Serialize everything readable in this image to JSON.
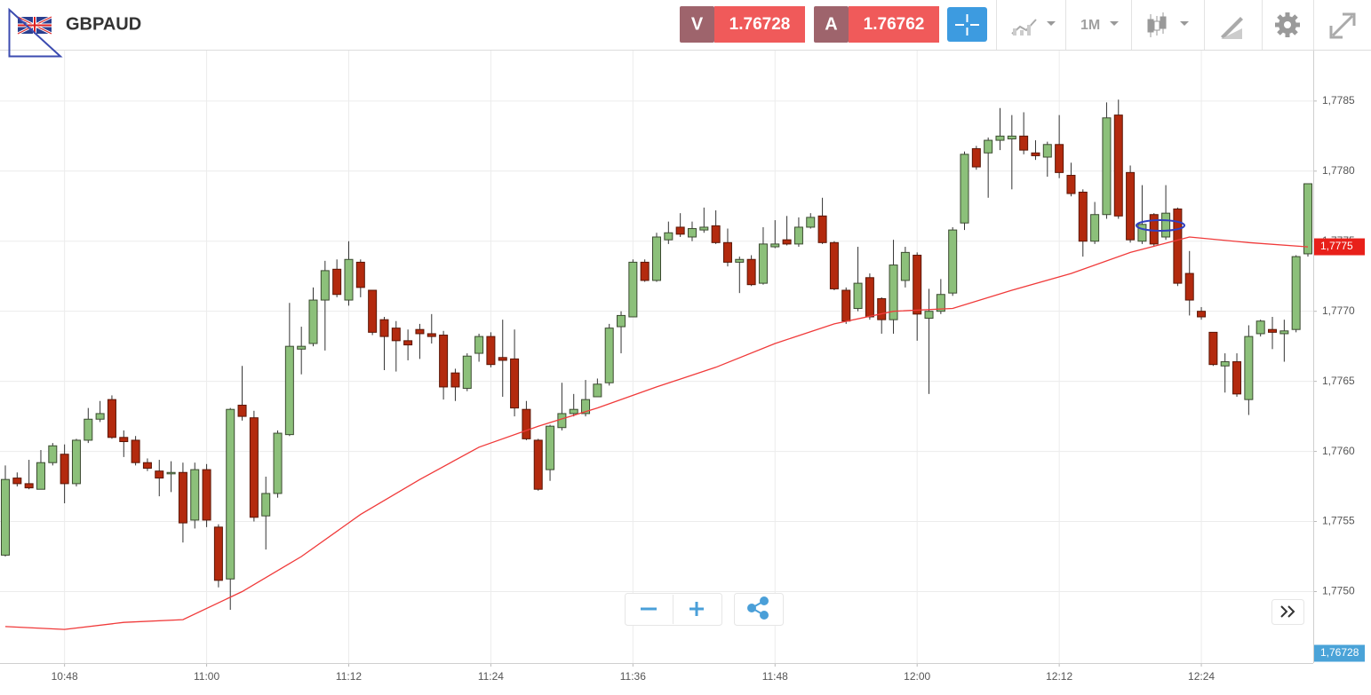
{
  "header": {
    "symbol": "GBPAUD",
    "bid": {
      "label": "V",
      "price": "1.76728"
    },
    "ask": {
      "label": "A",
      "price": "1.76762"
    },
    "timeframe": "1M"
  },
  "chart_data": {
    "type": "candlestick",
    "x": [
      "10:43",
      "10:44",
      "10:45",
      "10:46",
      "10:47",
      "10:48",
      "10:49",
      "10:50",
      "10:51",
      "10:52",
      "10:53",
      "10:54",
      "10:55",
      "10:56",
      "10:57",
      "10:58",
      "10:59",
      "11:00",
      "11:01",
      "11:02",
      "11:03",
      "11:04",
      "11:05",
      "11:06",
      "11:07",
      "11:08",
      "11:09",
      "11:10",
      "11:11",
      "11:12",
      "11:13",
      "11:14",
      "11:15",
      "11:16",
      "11:17",
      "11:18",
      "11:19",
      "11:20",
      "11:21",
      "11:22",
      "11:23",
      "11:24",
      "11:25",
      "11:26",
      "11:27",
      "11:28",
      "11:29",
      "11:30",
      "11:31",
      "11:32",
      "11:33",
      "11:34",
      "11:35",
      "11:36",
      "11:37",
      "11:38",
      "11:39",
      "11:40",
      "11:41",
      "11:42",
      "11:43",
      "11:44",
      "11:45",
      "11:46",
      "11:47",
      "11:48",
      "11:49",
      "11:50",
      "11:51",
      "11:52",
      "11:53",
      "11:54",
      "11:55",
      "11:56",
      "11:57",
      "11:58",
      "11:59",
      "12:00",
      "12:01",
      "12:02",
      "12:03",
      "12:04",
      "12:05",
      "12:06",
      "12:07",
      "12:08",
      "12:09",
      "12:10",
      "12:11",
      "12:12",
      "12:13",
      "12:14",
      "12:15",
      "12:16",
      "12:17",
      "12:18",
      "12:19",
      "12:20",
      "12:21",
      "12:22",
      "12:23",
      "12:24",
      "12:25",
      "12:26",
      "12:27",
      "12:28",
      "12:29",
      "12:30",
      "12:31",
      "12:32",
      "12:33"
    ],
    "open": [
      1.77526,
      1.77581,
      1.77577,
      1.77573,
      1.77592,
      1.77598,
      1.77577,
      1.77608,
      1.77623,
      1.77637,
      1.7761,
      1.77608,
      1.77592,
      1.77586,
      1.77584,
      1.77585,
      1.77551,
      1.77587,
      1.77546,
      1.77509,
      1.77633,
      1.77624,
      1.77554,
      1.7757,
      1.77612,
      1.77673,
      1.77677,
      1.77708,
      1.7773,
      1.77708,
      1.77735,
      1.77715,
      1.77694,
      1.77688,
      1.77679,
      1.77687,
      1.77684,
      1.77683,
      1.77656,
      1.77645,
      1.7767,
      1.77682,
      1.77667,
      1.77666,
      1.7763,
      1.77608,
      1.77587,
      1.77617,
      1.77627,
      1.77627,
      1.77639,
      1.77649,
      1.77689,
      1.77696,
      1.77735,
      1.77722,
      1.77751,
      1.7776,
      1.77753,
      1.77758,
      1.77761,
      1.77749,
      1.77735,
      1.77737,
      1.7772,
      1.77746,
      1.77751,
      1.77748,
      1.7776,
      1.77768,
      1.77749,
      1.77715,
      1.77702,
      1.77724,
      1.77709,
      1.77694,
      1.77722,
      1.7774,
      1.77695,
      1.777,
      1.77713,
      1.77763,
      1.77816,
      1.77813,
      1.77822,
      1.77823,
      1.77825,
      1.77813,
      1.7781,
      1.77819,
      1.77797,
      1.77785,
      1.7775,
      1.77769,
      1.7784,
      1.77799,
      1.7775,
      1.77769,
      1.77753,
      1.77773,
      1.77727,
      1.777,
      1.77685,
      1.77661,
      1.77664,
      1.77637,
      1.77684,
      1.77687,
      1.77684,
      1.77687,
      1.77741
    ],
    "high": [
      1.7759,
      1.77585,
      1.77594,
      1.77601,
      1.77606,
      1.77605,
      1.77609,
      1.77631,
      1.77636,
      1.7764,
      1.77615,
      1.77611,
      1.77595,
      1.77594,
      1.77593,
      1.77592,
      1.77592,
      1.77591,
      1.77548,
      1.77631,
      1.77661,
      1.77629,
      1.77582,
      1.77615,
      1.77706,
      1.77689,
      1.77717,
      1.77736,
      1.77737,
      1.7775,
      1.77737,
      1.77715,
      1.77696,
      1.77693,
      1.77687,
      1.77691,
      1.77698,
      1.77686,
      1.77659,
      1.7767,
      1.77684,
      1.77685,
      1.77694,
      1.77687,
      1.77636,
      1.77609,
      1.77619,
      1.77649,
      1.77641,
      1.77651,
      1.77652,
      1.77691,
      1.777,
      1.77737,
      1.77737,
      1.77756,
      1.77764,
      1.7777,
      1.77764,
      1.77774,
      1.77772,
      1.77759,
      1.77739,
      1.7774,
      1.7776,
      1.77765,
      1.77768,
      1.77767,
      1.7777,
      1.77781,
      1.7775,
      1.77717,
      1.77746,
      1.77727,
      1.7771,
      1.77751,
      1.77746,
      1.77742,
      1.77716,
      1.77723,
      1.7776,
      1.77814,
      1.77818,
      1.77824,
      1.77845,
      1.7784,
      1.77842,
      1.77822,
      1.77821,
      1.7784,
      1.77806,
      1.77787,
      1.77778,
      1.77849,
      1.77851,
      1.77804,
      1.7779,
      1.7777,
      1.7779,
      1.77774,
      1.77743,
      1.77703,
      1.77685,
      1.7767,
      1.7767,
      1.7769,
      1.77694,
      1.77696,
      1.77694,
      1.7774,
      1.77791
    ],
    "low": [
      1.77525,
      1.77575,
      1.77573,
      1.77573,
      1.7759,
      1.77563,
      1.77575,
      1.77606,
      1.77621,
      1.77609,
      1.77596,
      1.7759,
      1.77586,
      1.77568,
      1.77571,
      1.77535,
      1.77545,
      1.77546,
      1.77503,
      1.77487,
      1.77622,
      1.7755,
      1.7753,
      1.77567,
      1.77611,
      1.77655,
      1.77675,
      1.77672,
      1.7771,
      1.77704,
      1.7771,
      1.77683,
      1.77658,
      1.77657,
      1.77665,
      1.77666,
      1.77677,
      1.77637,
      1.77636,
      1.77643,
      1.77664,
      1.7766,
      1.77639,
      1.77625,
      1.77608,
      1.77572,
      1.77579,
      1.77615,
      1.77625,
      1.77625,
      1.77639,
      1.77647,
      1.7767,
      1.77696,
      1.77721,
      1.77721,
      1.77748,
      1.77753,
      1.7775,
      1.77756,
      1.77748,
      1.77732,
      1.77713,
      1.77718,
      1.77719,
      1.77745,
      1.77747,
      1.77746,
      1.77759,
      1.77748,
      1.77715,
      1.77691,
      1.777,
      1.77694,
      1.77684,
      1.77684,
      1.77717,
      1.77679,
      1.77641,
      1.77698,
      1.77711,
      1.77758,
      1.77801,
      1.77781,
      1.77815,
      1.77787,
      1.77812,
      1.77808,
      1.77796,
      1.77795,
      1.77782,
      1.77739,
      1.77748,
      1.77766,
      1.77766,
      1.77749,
      1.77748,
      1.77746,
      1.77751,
      1.77718,
      1.77697,
      1.77694,
      1.77661,
      1.77642,
      1.77639,
      1.77626,
      1.77682,
      1.77673,
      1.77664,
      1.77685,
      1.77739
    ],
    "close": [
      1.7758,
      1.77577,
      1.77574,
      1.77592,
      1.77604,
      1.77577,
      1.77608,
      1.77623,
      1.77627,
      1.7761,
      1.77607,
      1.77592,
      1.77588,
      1.77581,
      1.77585,
      1.77549,
      1.77587,
      1.77551,
      1.77508,
      1.7763,
      1.77625,
      1.77553,
      1.7757,
      1.77613,
      1.77675,
      1.77675,
      1.77708,
      1.77729,
      1.77712,
      1.77737,
      1.77717,
      1.77685,
      1.77682,
      1.77679,
      1.77676,
      1.77684,
      1.77682,
      1.77646,
      1.77646,
      1.77668,
      1.77682,
      1.77662,
      1.77665,
      1.77631,
      1.77609,
      1.77573,
      1.77618,
      1.77627,
      1.7763,
      1.77637,
      1.77648,
      1.77688,
      1.77697,
      1.77735,
      1.77722,
      1.77753,
      1.77756,
      1.77755,
      1.77759,
      1.7776,
      1.77749,
      1.77735,
      1.77737,
      1.77719,
      1.77748,
      1.77748,
      1.77748,
      1.7776,
      1.77767,
      1.77749,
      1.77716,
      1.77693,
      1.7772,
      1.77696,
      1.77694,
      1.77733,
      1.77742,
      1.77698,
      1.777,
      1.77712,
      1.77758,
      1.77812,
      1.77803,
      1.77822,
      1.77825,
      1.77825,
      1.77815,
      1.77811,
      1.77819,
      1.77799,
      1.77784,
      1.7775,
      1.77769,
      1.77838,
      1.77768,
      1.77751,
      1.77762,
      1.77748,
      1.7777,
      1.7772,
      1.77708,
      1.77696,
      1.77662,
      1.77664,
      1.77641,
      1.77682,
      1.77693,
      1.77685,
      1.77686,
      1.77739,
      1.77791
    ],
    "up_color": "#8cc07a",
    "down_color": "#b32a0e",
    "moving_average": {
      "color": "#f03a3a",
      "x": [
        "10:43",
        "10:48",
        "10:53",
        "10:58",
        "11:03",
        "11:08",
        "11:13",
        "11:18",
        "11:23",
        "11:28",
        "11:33",
        "11:38",
        "11:43",
        "11:48",
        "11:53",
        "11:58",
        "12:03",
        "12:08",
        "12:13",
        "12:18",
        "12:23",
        "12:28",
        "12:33"
      ],
      "values": [
        1.77475,
        1.77473,
        1.77478,
        1.7748,
        1.775,
        1.77525,
        1.77555,
        1.7758,
        1.77603,
        1.77618,
        1.77631,
        1.77646,
        1.7766,
        1.77677,
        1.77691,
        1.777,
        1.77702,
        1.77715,
        1.77727,
        1.77742,
        1.77753,
        1.77749,
        1.77746
      ]
    },
    "price_tags": [
      {
        "value": 1.77746,
        "label": "1,7775",
        "color": "#e8201a"
      },
      {
        "value": 1.76728,
        "label": "1,76728",
        "color": "#4aa3d8"
      }
    ],
    "ylim": [
      1.77449,
      1.77886
    ],
    "yticks": [
      {
        "value": 1.775,
        "label": "1,7750"
      },
      {
        "value": 1.7755,
        "label": "1,7755"
      },
      {
        "value": 1.776,
        "label": "1,7760"
      },
      {
        "value": 1.7765,
        "label": "1,7765"
      },
      {
        "value": 1.777,
        "label": "1,7770"
      },
      {
        "value": 1.7775,
        "label": "1,7775"
      },
      {
        "value": 1.778,
        "label": "1,7780"
      },
      {
        "value": 1.7785,
        "label": "1,7785"
      }
    ],
    "xticks": [
      "10:48",
      "11:00",
      "11:12",
      "11:24",
      "11:36",
      "11:48",
      "12:00",
      "12:12",
      "12:24"
    ],
    "grid": true
  }
}
